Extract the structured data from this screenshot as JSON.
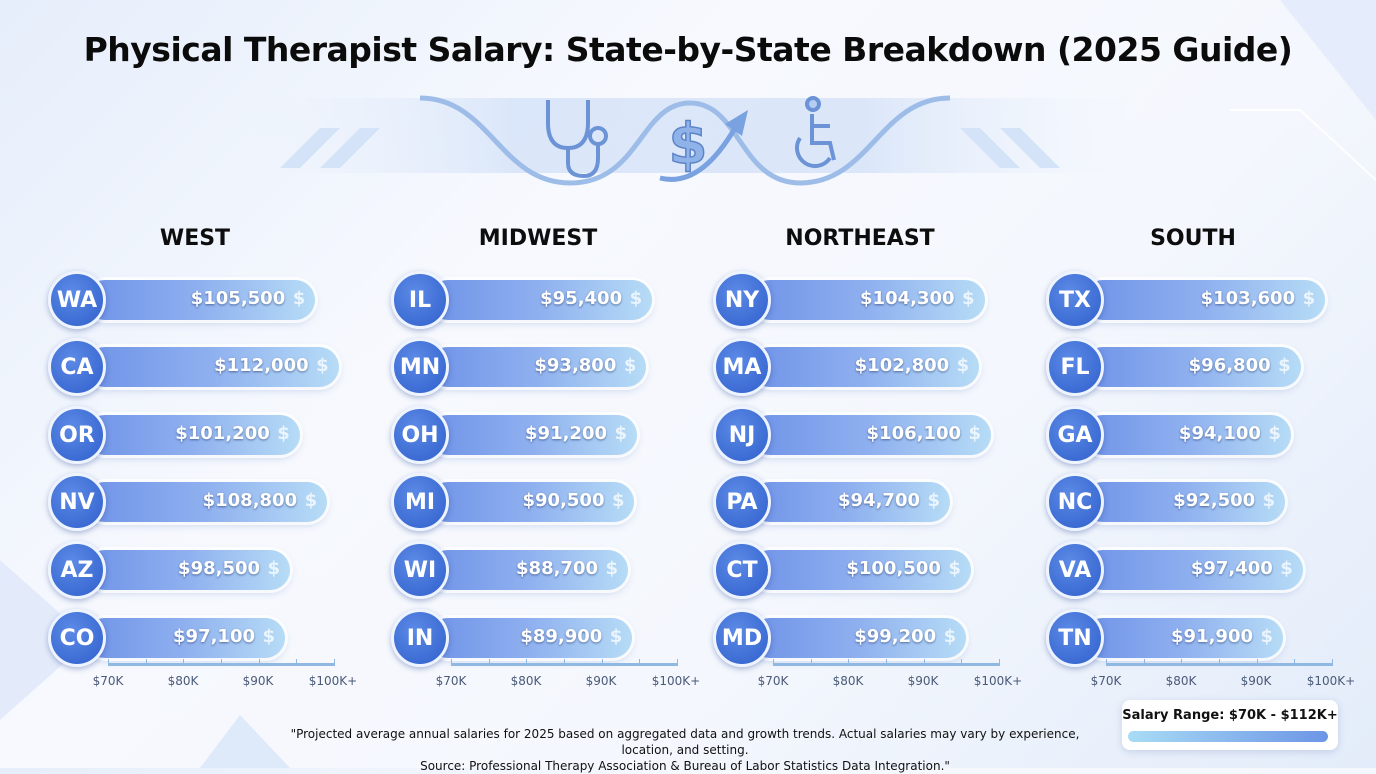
{
  "title": "Physical Therapist Salary: State-by-State Breakdown (2025 Guide)",
  "icons": [
    "stethoscope-icon",
    "dollar-growth-icon",
    "wheelchair-icon"
  ],
  "chart_data": [
    {
      "type": "bar",
      "title": "WEST",
      "categories": [
        "WA",
        "CA",
        "OR",
        "NV",
        "AZ",
        "CO"
      ],
      "values": [
        105500,
        112000,
        101200,
        108800,
        98500,
        97100
      ],
      "labels": [
        "$105,500",
        "$112,000",
        "$101,200",
        "$108,800",
        "$98,500",
        "$97,100"
      ],
      "xticks": [
        "$70K",
        "$80K",
        "$90K",
        "$100K+"
      ]
    },
    {
      "type": "bar",
      "title": "MIDWEST",
      "categories": [
        "IL",
        "MN",
        "OH",
        "MI",
        "WI",
        "IN"
      ],
      "values": [
        95400,
        93800,
        91200,
        90500,
        88700,
        89900
      ],
      "labels": [
        "$95,400",
        "$93,800",
        "$91,200",
        "$90,500",
        "$88,700",
        "$89,900"
      ],
      "xticks": [
        "$70K",
        "$80K",
        "$90K",
        "$100K+"
      ]
    },
    {
      "type": "bar",
      "title": "NORTHEAST",
      "categories": [
        "NY",
        "MA",
        "NJ",
        "PA",
        "CT",
        "MD"
      ],
      "values": [
        104300,
        102800,
        106100,
        94700,
        100500,
        99200
      ],
      "labels": [
        "$104,300",
        "$102,800",
        "$106,100",
        "$94,700",
        "$100,500",
        "$99,200"
      ],
      "xticks": [
        "$70K",
        "$80K",
        "$90K",
        "$100K+"
      ]
    },
    {
      "type": "bar",
      "title": "SOUTH",
      "categories": [
        "TX",
        "FL",
        "GA",
        "NC",
        "VA",
        "TN"
      ],
      "values": [
        103600,
        96800,
        94100,
        92500,
        97400,
        91900
      ],
      "labels": [
        "$103,600",
        "$96,800",
        "$94,100",
        "$92,500",
        "$97,400",
        "$91,900"
      ],
      "xticks": [
        "$70K",
        "$80K",
        "$90K",
        "$100K+"
      ]
    }
  ],
  "dollar_symbol": "$",
  "footnote_line1": "\"Projected average annual salaries for 2025 based on aggregated data and growth trends. Actual salaries may vary by experience, location, and setting.",
  "footnote_line2": "Source: Professional Therapy Association & Bureau of Labor Statistics Data Integration.\"",
  "legend": {
    "label": "Salary Range: $70K - $112K+"
  },
  "colors": {
    "badge": "#2f5fcc",
    "bar_start": "#6f93e8",
    "bar_end": "#b6dcf6",
    "axis": "#8fb8e2"
  }
}
